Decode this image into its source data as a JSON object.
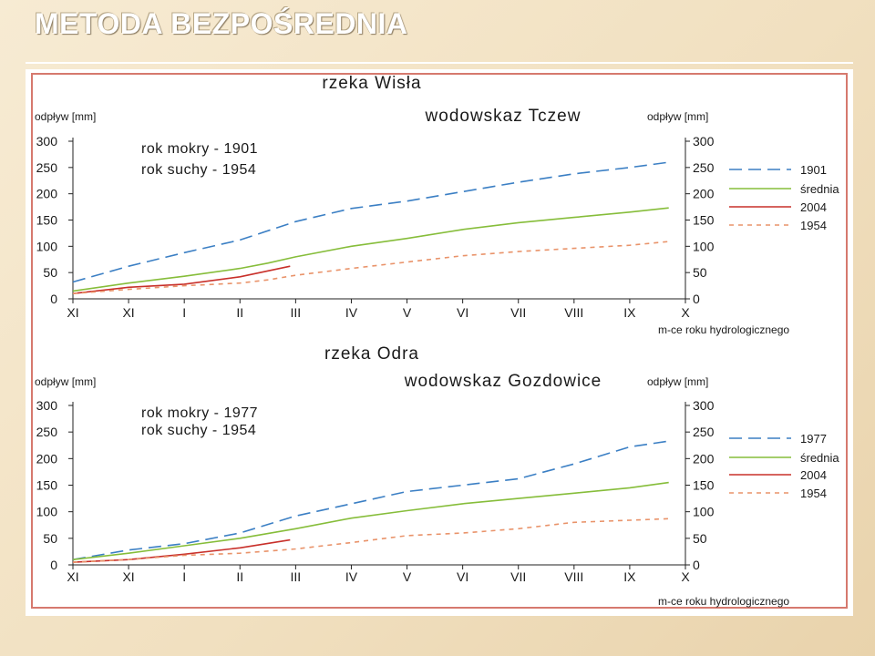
{
  "slide": {
    "title": "METODA BEZPOŚREDNIA"
  },
  "colors": {
    "blue": "#3b7fc4",
    "green": "#86bd3a",
    "red": "#c8302a",
    "orange": "#e9936a",
    "border": "#d6796e"
  },
  "chart_data": [
    {
      "type": "line",
      "title": "rzeka Wisła",
      "subtitle": "wodowskaz Tczew",
      "ylabel_left": "odpływ [mm]",
      "ylabel_right": "odpływ [mm]",
      "xlabel": "m-ce roku hydrologicznego",
      "annotation": [
        "rok mokry - 1901",
        "rok suchy - 1954"
      ],
      "categories": [
        "XI",
        "XI",
        "I",
        "II",
        "III",
        "IV",
        "V",
        "VI",
        "VII",
        "VIII",
        "IX",
        "X"
      ],
      "yticks": [
        "0",
        "50",
        "100",
        "150",
        "200",
        "250",
        "300"
      ],
      "ylim": [
        0,
        300
      ],
      "legend": "right",
      "series": [
        {
          "name": "1901",
          "color": "#3b7fc4",
          "dash": "long",
          "x": [
            0,
            1,
            2,
            3,
            4,
            5,
            6,
            7,
            8,
            9,
            10,
            10.7
          ],
          "values": [
            32,
            62,
            88,
            112,
            147,
            172,
            186,
            204,
            222,
            238,
            250,
            260
          ]
        },
        {
          "name": "średnia",
          "color": "#86bd3a",
          "dash": "solid",
          "x": [
            0,
            1,
            2,
            3,
            3.5,
            4,
            5,
            6,
            7,
            8,
            9,
            10,
            10.7
          ],
          "values": [
            15,
            30,
            43,
            58,
            68,
            80,
            100,
            115,
            132,
            145,
            155,
            165,
            173
          ]
        },
        {
          "name": "2004",
          "color": "#c8302a",
          "dash": "solid",
          "x": [
            0,
            1,
            2,
            3,
            3.9
          ],
          "values": [
            10,
            22,
            28,
            42,
            62
          ]
        },
        {
          "name": "1954",
          "color": "#e9936a",
          "dash": "short",
          "x": [
            0,
            1,
            2,
            3,
            3.5,
            4,
            5,
            6,
            7,
            8,
            9,
            10,
            10.7
          ],
          "values": [
            10,
            18,
            25,
            30,
            36,
            45,
            58,
            70,
            82,
            90,
            96,
            102,
            109
          ]
        }
      ]
    },
    {
      "type": "line",
      "title": "rzeka Odra",
      "subtitle": "wodowskaz Gozdowice",
      "ylabel_left": "odpływ [mm]",
      "ylabel_right": "odpływ [mm]",
      "xlabel": "m-ce roku hydrologicznego",
      "annotation": [
        "rok mokry - 1977",
        "rok suchy - 1954"
      ],
      "categories": [
        "XI",
        "XI",
        "I",
        "II",
        "III",
        "IV",
        "V",
        "VI",
        "VII",
        "VIII",
        "IX",
        "X"
      ],
      "yticks": [
        "0",
        "50",
        "100",
        "150",
        "200",
        "250",
        "300"
      ],
      "ylim": [
        0,
        300
      ],
      "legend": "right",
      "series": [
        {
          "name": "1977",
          "color": "#3b7fc4",
          "dash": "long",
          "x": [
            0,
            1,
            2,
            3,
            4,
            5,
            6,
            7,
            8,
            9,
            10,
            10.7
          ],
          "values": [
            10,
            28,
            40,
            60,
            92,
            115,
            138,
            150,
            162,
            190,
            222,
            233
          ]
        },
        {
          "name": "średnia",
          "color": "#86bd3a",
          "dash": "solid",
          "x": [
            0,
            1,
            2,
            3,
            4,
            5,
            6,
            7,
            8,
            9,
            10,
            10.7
          ],
          "values": [
            10,
            22,
            36,
            50,
            68,
            88,
            102,
            115,
            125,
            135,
            145,
            155
          ]
        },
        {
          "name": "2004",
          "color": "#c8302a",
          "dash": "solid",
          "x": [
            0,
            1,
            2,
            3,
            3.9
          ],
          "values": [
            5,
            10,
            20,
            32,
            47
          ]
        },
        {
          "name": "1954",
          "color": "#e9936a",
          "dash": "short",
          "x": [
            0,
            1,
            2,
            3,
            4,
            5,
            6,
            7,
            8,
            9,
            10,
            10.7
          ],
          "values": [
            5,
            10,
            18,
            22,
            30,
            42,
            55,
            60,
            68,
            80,
            84,
            87
          ]
        }
      ]
    }
  ]
}
